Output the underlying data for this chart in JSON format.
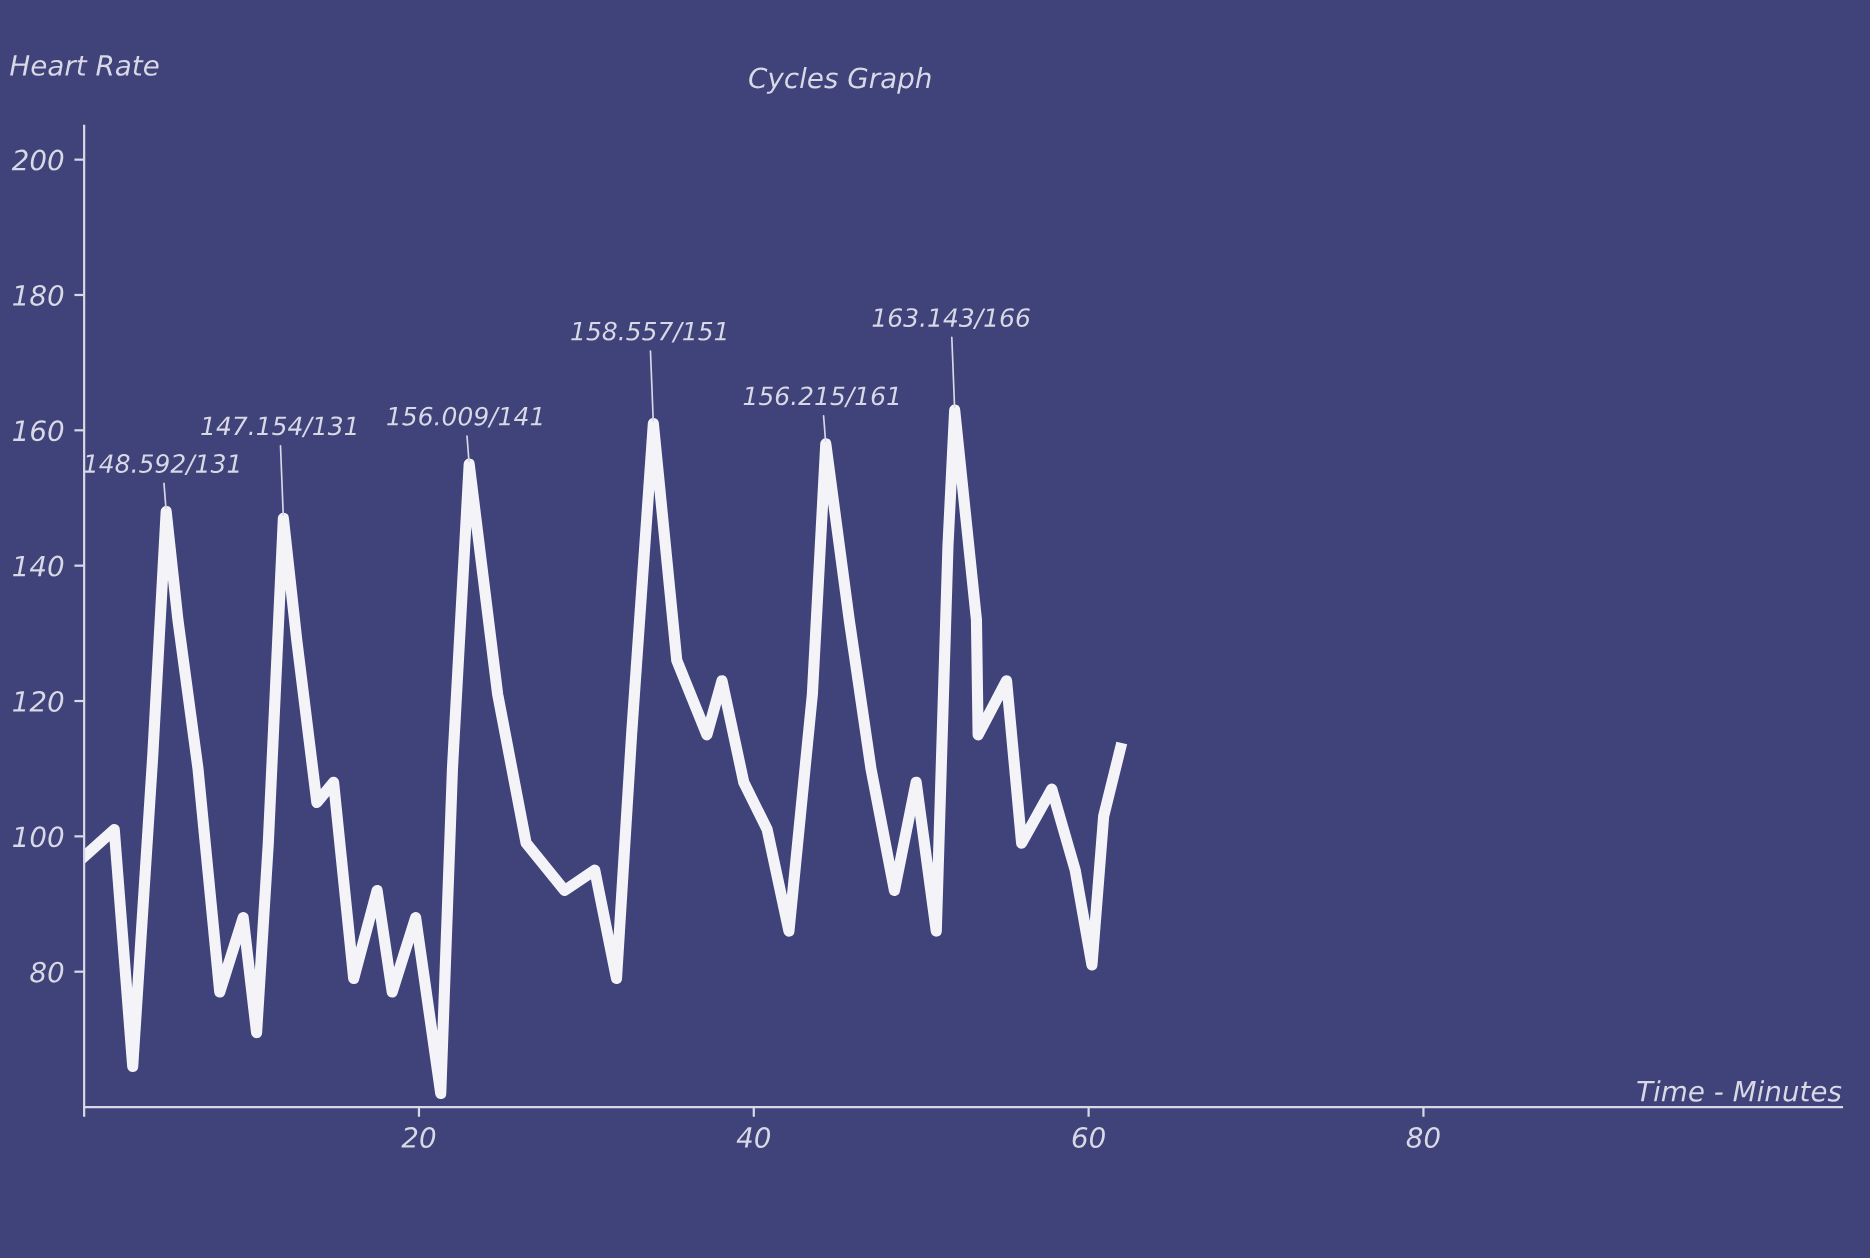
{
  "chart_data": {
    "type": "line",
    "title": "Cycles Graph",
    "xlabel": "Time - Minutes",
    "ylabel": "Heart Rate",
    "x": [
      0,
      1.8,
      2.9,
      4.1,
      4.9,
      5.6,
      6.8,
      8.1,
      9.5,
      10.3,
      11.0,
      11.9,
      12.7,
      13.9,
      14.9,
      16.1,
      17.5,
      18.4,
      19.8,
      21.3,
      22.0,
      23.0,
      24.7,
      26.4,
      28.7,
      30.5,
      31.8,
      32.7,
      34.0,
      35.4,
      37.2,
      38.1,
      39.4,
      40.8,
      42.1,
      43.5,
      44.3,
      45.7,
      47.0,
      48.4,
      49.7,
      50.9,
      51.6,
      52.0,
      53.3,
      53.4,
      55.1,
      56.0,
      57.8,
      59.2,
      60.2,
      60.9,
      61.9
    ],
    "series": [
      {
        "color": "#f4f4f8",
        "values": [
          97,
          101,
          66,
          112,
          148,
          132,
          110,
          77,
          88,
          71,
          99,
          147,
          129,
          105,
          108,
          79,
          92,
          77,
          88,
          62,
          110,
          155,
          121,
          99,
          92,
          95,
          79,
          115,
          161,
          126,
          115,
          123,
          108,
          101,
          86,
          121,
          158,
          132,
          110,
          92,
          108,
          86,
          143,
          163,
          132,
          115,
          123,
          99,
          107,
          95,
          81,
          103,
          113
        ]
      }
    ],
    "xlim": [
      0,
      105
    ],
    "xticks": [
      {
        "value": 0,
        "label": null
      },
      20,
      40,
      60,
      80
    ],
    "ylim": [
      60,
      205
    ],
    "yticks": [
      80,
      100,
      120,
      140,
      160,
      180,
      200
    ],
    "annotations": [
      {
        "text": "148.592/131",
        "x": 4.9,
        "y": 148
      },
      {
        "text": "147.154/131",
        "x": 11.9,
        "y": 147
      },
      {
        "text": "156.009/141",
        "x": 23.0,
        "y": 155
      },
      {
        "text": "158.557/151",
        "x": 34.0,
        "y": 161
      },
      {
        "text": "156.215/161",
        "x": 44.3,
        "y": 158
      },
      {
        "text": "163.143/166",
        "x": 52.0,
        "y": 163
      }
    ],
    "grid": false,
    "legend": false,
    "marker": "none",
    "line_style": "solid"
  }
}
